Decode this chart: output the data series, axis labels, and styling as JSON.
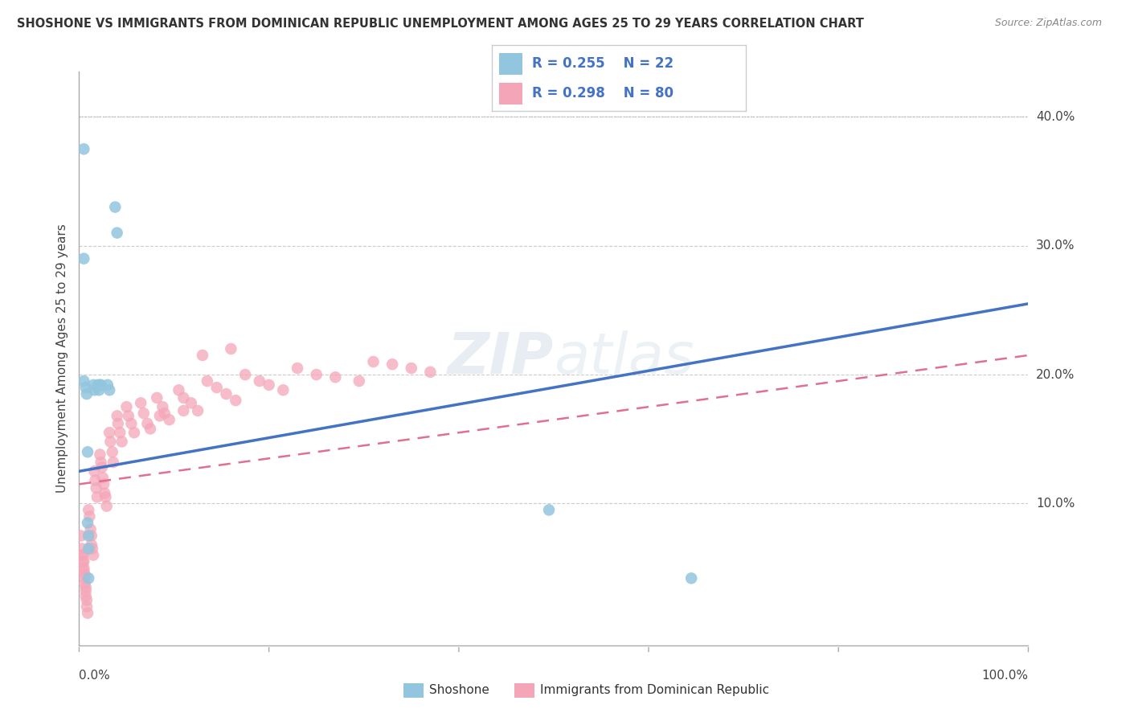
{
  "title": "SHOSHONE VS IMMIGRANTS FROM DOMINICAN REPUBLIC UNEMPLOYMENT AMONG AGES 25 TO 29 YEARS CORRELATION CHART",
  "source": "Source: ZipAtlas.com",
  "ylabel": "Unemployment Among Ages 25 to 29 years",
  "ytick_values": [
    0.0,
    0.1,
    0.2,
    0.3,
    0.4
  ],
  "ytick_labels": [
    "",
    "10.0%",
    "20.0%",
    "30.0%",
    "40.0%"
  ],
  "xmin": 0.0,
  "xmax": 1.0,
  "ymin": -0.01,
  "ymax": 0.435,
  "shoshone_color": "#92c5de",
  "dominican_color": "#f4a6b8",
  "trendline1_color": "#4472c4",
  "trendline2_color": "#e07090",
  "legend_color": "#4472c4",
  "legend_label1": "Shoshone",
  "legend_label2": "Immigrants from Dominican Republic",
  "blue_line_y0": 0.125,
  "blue_line_y1": 0.255,
  "pink_line_y0": 0.115,
  "pink_line_y1": 0.215,
  "shoshone_x": [
    0.005,
    0.005,
    0.005,
    0.007,
    0.008,
    0.009,
    0.009,
    0.01,
    0.01,
    0.01,
    0.015,
    0.016,
    0.02,
    0.021,
    0.022,
    0.023,
    0.03,
    0.032,
    0.038,
    0.04,
    0.495,
    0.645
  ],
  "shoshone_y": [
    0.375,
    0.29,
    0.195,
    0.19,
    0.185,
    0.14,
    0.085,
    0.075,
    0.065,
    0.042,
    0.192,
    0.188,
    0.192,
    0.188,
    0.192,
    0.192,
    0.192,
    0.188,
    0.33,
    0.31,
    0.095,
    0.042
  ],
  "dominican_x": [
    0.002,
    0.003,
    0.003,
    0.004,
    0.004,
    0.005,
    0.005,
    0.005,
    0.006,
    0.006,
    0.006,
    0.007,
    0.007,
    0.007,
    0.008,
    0.008,
    0.009,
    0.01,
    0.011,
    0.012,
    0.013,
    0.013,
    0.014,
    0.015,
    0.016,
    0.017,
    0.018,
    0.019,
    0.022,
    0.023,
    0.024,
    0.025,
    0.026,
    0.027,
    0.028,
    0.029,
    0.032,
    0.033,
    0.035,
    0.036,
    0.04,
    0.041,
    0.043,
    0.045,
    0.05,
    0.052,
    0.055,
    0.058,
    0.065,
    0.068,
    0.072,
    0.075,
    0.082,
    0.088,
    0.09,
    0.095,
    0.105,
    0.11,
    0.118,
    0.125,
    0.135,
    0.145,
    0.155,
    0.165,
    0.175,
    0.19,
    0.2,
    0.215,
    0.23,
    0.25,
    0.27,
    0.295,
    0.31,
    0.33,
    0.35,
    0.37,
    0.16,
    0.13,
    0.11,
    0.085
  ],
  "dominican_y": [
    0.075,
    0.065,
    0.06,
    0.06,
    0.055,
    0.055,
    0.05,
    0.048,
    0.045,
    0.042,
    0.038,
    0.035,
    0.032,
    0.028,
    0.025,
    0.02,
    0.015,
    0.095,
    0.09,
    0.08,
    0.075,
    0.068,
    0.065,
    0.06,
    0.125,
    0.118,
    0.112,
    0.105,
    0.138,
    0.132,
    0.128,
    0.12,
    0.115,
    0.108,
    0.105,
    0.098,
    0.155,
    0.148,
    0.14,
    0.132,
    0.168,
    0.162,
    0.155,
    0.148,
    0.175,
    0.168,
    0.162,
    0.155,
    0.178,
    0.17,
    0.162,
    0.158,
    0.182,
    0.175,
    0.17,
    0.165,
    0.188,
    0.182,
    0.178,
    0.172,
    0.195,
    0.19,
    0.185,
    0.18,
    0.2,
    0.195,
    0.192,
    0.188,
    0.205,
    0.2,
    0.198,
    0.195,
    0.21,
    0.208,
    0.205,
    0.202,
    0.22,
    0.215,
    0.172,
    0.168
  ]
}
